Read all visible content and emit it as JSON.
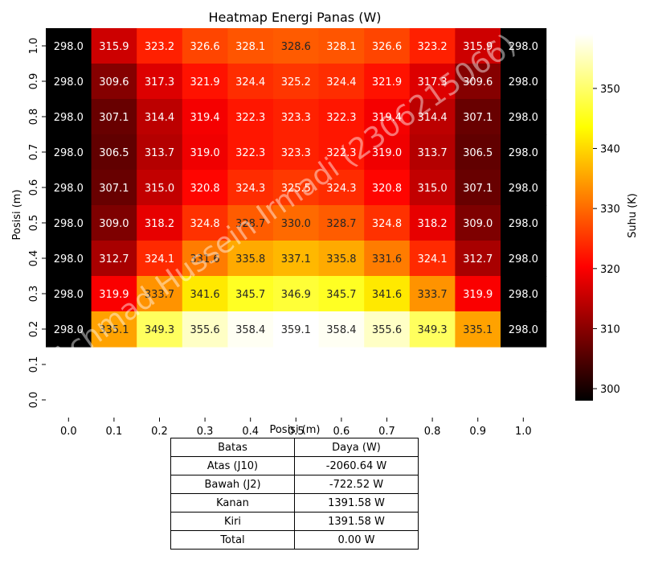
{
  "chart_data": {
    "type": "heatmap",
    "title": "Heatmap Energi Panas (W)",
    "xlabel": "Posisi (m)",
    "ylabel": "Posisi (m)",
    "x_ticks": [
      "0.0",
      "0.1",
      "0.2",
      "0.3",
      "0.4",
      "0.5",
      "0.6",
      "0.7",
      "0.8",
      "0.9",
      "1.0"
    ],
    "y_ticks": [
      "1.0",
      "0.9",
      "0.8",
      "0.7",
      "0.6",
      "0.5",
      "0.4",
      "0.3",
      "0.2",
      "0.1",
      "0.0"
    ],
    "rows": [
      [
        "298.0",
        "315.9",
        "323.2",
        "326.6",
        "328.1",
        "328.6",
        "328.1",
        "326.6",
        "323.2",
        "315.9",
        "298.0"
      ],
      [
        "298.0",
        "309.6",
        "317.3",
        "321.9",
        "324.4",
        "325.2",
        "324.4",
        "321.9",
        "317.3",
        "309.6",
        "298.0"
      ],
      [
        "298.0",
        "307.1",
        "314.4",
        "319.4",
        "322.3",
        "323.3",
        "322.3",
        "319.4",
        "314.4",
        "307.1",
        "298.0"
      ],
      [
        "298.0",
        "306.5",
        "313.7",
        "319.0",
        "322.3",
        "323.3",
        "322.3",
        "319.0",
        "313.7",
        "306.5",
        "298.0"
      ],
      [
        "298.0",
        "307.1",
        "315.0",
        "320.8",
        "324.3",
        "325.5",
        "324.3",
        "320.8",
        "315.0",
        "307.1",
        "298.0"
      ],
      [
        "298.0",
        "309.0",
        "318.2",
        "324.8",
        "328.7",
        "330.0",
        "328.7",
        "324.8",
        "318.2",
        "309.0",
        "298.0"
      ],
      [
        "298.0",
        "312.7",
        "324.1",
        "331.6",
        "335.8",
        "337.1",
        "335.8",
        "331.6",
        "324.1",
        "312.7",
        "298.0"
      ],
      [
        "298.0",
        "319.9",
        "333.7",
        "341.6",
        "345.7",
        "346.9",
        "345.7",
        "341.6",
        "333.7",
        "319.9",
        "298.0"
      ],
      [
        "298.0",
        "335.1",
        "349.3",
        "355.6",
        "358.4",
        "359.1",
        "358.4",
        "355.6",
        "349.3",
        "335.1",
        "298.0"
      ]
    ],
    "colormap": "hot",
    "vmin": 298.0,
    "vmax": 359.1,
    "colorbar": {
      "label": "Suhu (K)",
      "ticks": [
        "300",
        "310",
        "320",
        "330",
        "340",
        "350"
      ]
    },
    "watermark": "Achmad Hussein Irmadi (2306215066)",
    "table": {
      "headers": [
        "Batas",
        "Daya (W)"
      ],
      "rows": [
        [
          "Atas (J10)",
          "-2060.64 W"
        ],
        [
          "Bawah (J2)",
          "-722.52 W"
        ],
        [
          "Kanan",
          "1391.58 W"
        ],
        [
          "Kiri",
          "1391.58 W"
        ],
        [
          "Total",
          "0.00 W"
        ]
      ]
    }
  }
}
